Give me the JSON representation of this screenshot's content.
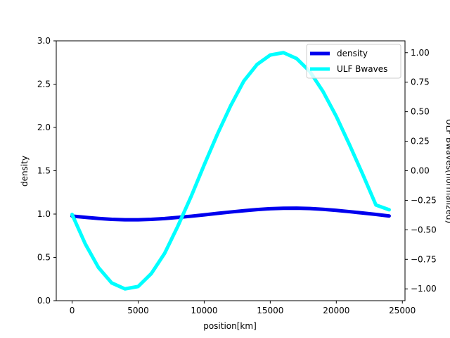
{
  "chart_data": {
    "type": "line",
    "title": "",
    "xlabel": "position[km]",
    "ylabel_left": "density",
    "ylabel_right": "ULF Bwaves(normalized)",
    "xlim": [
      -1200,
      25200
    ],
    "ylim_left": [
      0,
      3.0
    ],
    "ylim_right": [
      -1.1,
      1.1
    ],
    "x_ticks": [
      0,
      5000,
      10000,
      15000,
      20000,
      25000
    ],
    "x_tick_labels": [
      "0",
      "5000",
      "10000",
      "15000",
      "20000",
      "25000"
    ],
    "y_left_ticks": [
      0,
      0.5,
      1.0,
      1.5,
      2.0,
      2.5,
      3.0
    ],
    "y_left_tick_labels": [
      "0.0",
      "0.5",
      "1.0",
      "1.5",
      "2.0",
      "2.5",
      "3.0"
    ],
    "y_right_ticks": [
      -1.0,
      -0.75,
      -0.5,
      -0.25,
      0.0,
      0.25,
      0.5,
      0.75,
      1.0
    ],
    "y_right_tick_labels": [
      "−1.00",
      "−0.75",
      "−0.50",
      "−0.25",
      "0.00",
      "0.25",
      "0.50",
      "0.75",
      "1.00"
    ],
    "grid": false,
    "legend_position": "top-right",
    "series": [
      {
        "name": "density",
        "axis": "left",
        "color": "#0000ee",
        "x": [
          0,
          1000,
          2000,
          3000,
          4000,
          5000,
          6000,
          7000,
          8000,
          9000,
          10000,
          11000,
          12000,
          13000,
          14000,
          15000,
          16000,
          17000,
          18000,
          19000,
          20000,
          21000,
          22000,
          23000,
          24000
        ],
        "values": [
          0.977,
          0.962,
          0.949,
          0.939,
          0.934,
          0.934,
          0.939,
          0.948,
          0.961,
          0.975,
          0.991,
          1.008,
          1.024,
          1.039,
          1.052,
          1.062,
          1.067,
          1.068,
          1.064,
          1.055,
          1.043,
          1.028,
          1.012,
          0.996,
          0.978
        ]
      },
      {
        "name": "ULF Bwaves",
        "axis": "right",
        "color": "#00ffff",
        "x": [
          0,
          1000,
          2000,
          3000,
          4000,
          5000,
          6000,
          7000,
          8000,
          9000,
          10000,
          11000,
          12000,
          13000,
          14000,
          15000,
          16000,
          17000,
          18000,
          19000,
          20000,
          21000,
          22000,
          23000,
          24000
        ],
        "values": [
          -0.37,
          -0.62,
          -0.82,
          -0.95,
          -1.0,
          -0.98,
          -0.87,
          -0.7,
          -0.47,
          -0.22,
          0.05,
          0.31,
          0.55,
          0.76,
          0.9,
          0.98,
          1.0,
          0.95,
          0.84,
          0.67,
          0.46,
          0.22,
          -0.03,
          -0.29,
          -0.33
        ]
      }
    ]
  }
}
